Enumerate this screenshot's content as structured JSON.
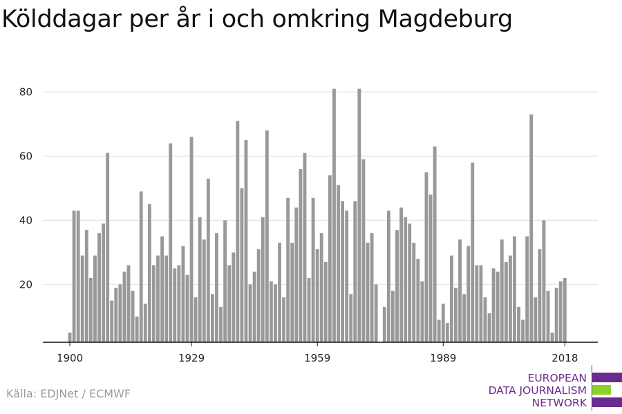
{
  "header": {
    "title": "Kölddagar per år i och omkring Magdeburg"
  },
  "footer": {
    "source": "Källa: EDJNet / ECMWF"
  },
  "logo": {
    "lines": [
      "EUROPEAN",
      "DATA JOURNALISM",
      "NETWORK"
    ],
    "colors": {
      "purple": "#6a2a8f",
      "green": "#8ed12c"
    }
  },
  "chart_data": {
    "type": "bar",
    "title": "Kölddagar per år i och omkring Magdeburg",
    "xlabel": "",
    "ylabel": "",
    "x": [
      1900,
      1901,
      1902,
      1903,
      1904,
      1905,
      1906,
      1907,
      1908,
      1909,
      1910,
      1911,
      1912,
      1913,
      1914,
      1915,
      1916,
      1917,
      1918,
      1919,
      1920,
      1921,
      1922,
      1923,
      1924,
      1925,
      1926,
      1927,
      1928,
      1929,
      1930,
      1931,
      1932,
      1933,
      1934,
      1935,
      1936,
      1937,
      1938,
      1939,
      1940,
      1941,
      1942,
      1943,
      1944,
      1945,
      1946,
      1947,
      1948,
      1949,
      1950,
      1951,
      1952,
      1953,
      1954,
      1955,
      1956,
      1957,
      1958,
      1959,
      1960,
      1961,
      1962,
      1963,
      1964,
      1965,
      1966,
      1967,
      1968,
      1969,
      1970,
      1971,
      1972,
      1973,
      1974,
      1975,
      1976,
      1977,
      1978,
      1979,
      1980,
      1981,
      1982,
      1983,
      1984,
      1985,
      1986,
      1987,
      1988,
      1989,
      1990,
      1991,
      1992,
      1993,
      1994,
      1995,
      1996,
      1997,
      1998,
      1999,
      2000,
      2001,
      2002,
      2003,
      2004,
      2005,
      2006,
      2007,
      2008,
      2009,
      2010,
      2011,
      2012,
      2013,
      2014,
      2015,
      2016,
      2017,
      2018
    ],
    "values": [
      5,
      43,
      43,
      29,
      37,
      22,
      29,
      36,
      39,
      61,
      15,
      19,
      20,
      24,
      26,
      18,
      10,
      49,
      14,
      45,
      26,
      29,
      35,
      29,
      64,
      25,
      26,
      32,
      23,
      66,
      16,
      41,
      34,
      53,
      17,
      36,
      13,
      40,
      26,
      30,
      71,
      50,
      65,
      20,
      24,
      31,
      41,
      68,
      21,
      20,
      33,
      16,
      47,
      33,
      44,
      56,
      61,
      22,
      47,
      31,
      36,
      27,
      54,
      81,
      51,
      46,
      43,
      17,
      46,
      81,
      59,
      33,
      36,
      20,
      0,
      13,
      43,
      18,
      37,
      44,
      41,
      39,
      33,
      28,
      21,
      55,
      48,
      63,
      9,
      14,
      8,
      29,
      19,
      34,
      17,
      32,
      58,
      26,
      26,
      16,
      11,
      25,
      24,
      34,
      27,
      29,
      35,
      13,
      9,
      35,
      73,
      16,
      31,
      40,
      18,
      5,
      19,
      21,
      22
    ],
    "x_ticks": [
      1900,
      1929,
      1959,
      1989,
      2018
    ],
    "y_ticks": [
      20,
      40,
      60,
      80
    ],
    "ylim": [
      2,
      82
    ],
    "grid": true,
    "bar_color": "#999999"
  }
}
